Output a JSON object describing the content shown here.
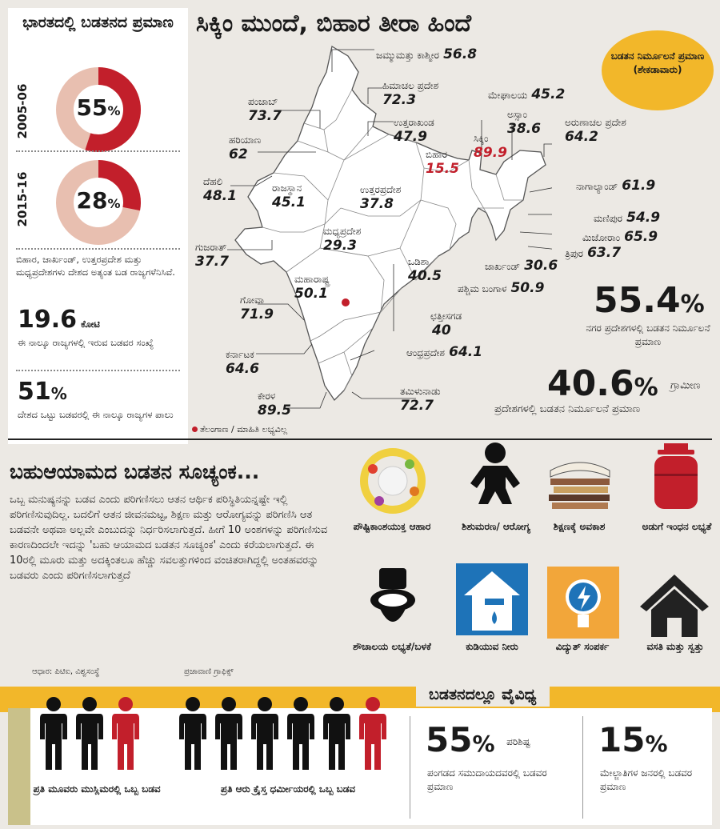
{
  "left": {
    "title": "ಭಾರತದಲ್ಲಿ ಬಡತನದ ಪ್ರಮಾಣ",
    "donuts": [
      {
        "year": "2005-06",
        "percent": 55,
        "value_label": "55"
      },
      {
        "year": "2015-16",
        "percent": 28,
        "value_label": "28"
      }
    ],
    "pct_sign": "%",
    "states_note": "ಬಿಹಾರ, ಜಾರ್ಖಂಡ್, ಉತ್ತರಪ್ರದೇಶ ಮತ್ತು ಮಧ್ಯಪ್ರದೇಶಗಳು ದೇಶದ ಅತ್ಯಂತ ಬಡ ರಾಜ್ಯಗಳೆನಿಸಿವೆ.",
    "crore_num": "19.6",
    "crore_unit": "ಕೋಟಿ",
    "crore_desc": "ಈ ನಾಲ್ಕೂ ರಾಜ್ಯಗಳಲ್ಲಿ ಇರುವ ಬಡವರ ಸಂಖ್ಯೆ",
    "share_num": "51",
    "share_desc": "ದೇಶದ ಒಟ್ಟು ಬಡವರಲ್ಲಿ ಈ ನಾಲ್ಕೂ ರಾಜ್ಯಗಳ ಪಾಲು"
  },
  "map": {
    "title": "ಸಿಕ್ಕಿಂ ಮುಂದೆ, ಬಿಹಾರ ತೀರಾ ಹಿಂದೆ",
    "legend": "ಬಡತನ ನಿರ್ಮೂಲನೆ ಪ್ರಮಾಣ (ಶೇಕಡಾವಾರು)",
    "states": [
      {
        "name": "ಜಮ್ಮುಮತ್ತು ಕಾಶ್ಮೀರ",
        "value": "56.8"
      },
      {
        "name": "ಹಿಮಾಚಲ ಪ್ರದೇಶ",
        "value": "72.3"
      },
      {
        "name": "ಪಂಜಾಬ್",
        "value": "73.7"
      },
      {
        "name": "ಉತ್ತರಾಖಂಡ",
        "value": "47.9"
      },
      {
        "name": "ಹರಿಯಾಣ",
        "value": "62"
      },
      {
        "name": "ಬಿಹಾರ",
        "value": "15.5"
      },
      {
        "name": "ಸಿಕ್ಕಿಂ",
        "value": "89.9"
      },
      {
        "name": "ದೆಹಲಿ",
        "value": "48.1"
      },
      {
        "name": "ರಾಜಸ್ಥಾನ",
        "value": "45.1"
      },
      {
        "name": "ಉತ್ತರಪ್ರದೇಶ",
        "value": "37.8"
      },
      {
        "name": "ಗುಜರಾತ್",
        "value": "37.7"
      },
      {
        "name": "ಮಧ್ಯಪ್ರದೇಶ",
        "value": "29.3"
      },
      {
        "name": "ಒಡಿಶಾ",
        "value": "40.5"
      },
      {
        "name": "ಮಹಾರಾಷ್ಟ್ರ",
        "value": "50.1"
      },
      {
        "name": "ಗೋವಾ",
        "value": "71.9"
      },
      {
        "name": "ಛತ್ತೀಸಗಡ",
        "value": "40"
      },
      {
        "name": "ಕರ್ನಾಟಕ",
        "value": "64.6"
      },
      {
        "name": "ಆಂಧ್ರಪ್ರದೇಶ",
        "value": "64.1"
      },
      {
        "name": "ಕೇರಳ",
        "value": "89.5"
      },
      {
        "name": "ತಮಿಳುನಾಡು",
        "value": "72.7"
      },
      {
        "name": "ಮೇಘಾಲಯ",
        "value": "45.2"
      },
      {
        "name": "ಅಸ್ಸಾಂ",
        "value": "38.6"
      },
      {
        "name": "ಅರುಣಾಚಲ ಪ್ರದೇಶ",
        "value": "64.2"
      },
      {
        "name": "ನಾಗಾಲ್ಯಾಂಡ್",
        "value": "61.9"
      },
      {
        "name": "ಮಣಿಪುರ",
        "value": "54.9"
      },
      {
        "name": "ಮಿಜೋರಾಂ",
        "value": "65.9"
      },
      {
        "name": "ತ್ರಿಪುರ",
        "value": "63.7"
      },
      {
        "name": "ಜಾರ್ಖಂಡ್",
        "value": "30.6"
      },
      {
        "name": "ಪಶ್ಚಿಮ ಬಂಗಾಳ",
        "value": "50.9"
      }
    ],
    "telangana_note": "ತೆಲಂಗಾಣ / ಮಾಹಿತಿ ಲಭ್ಯವಿಲ್ಲ",
    "urban_num": "55.4",
    "urban_desc": "ನಗರ ಪ್ರದೇಶಗಳಲ್ಲಿ ಬಡತನ ನಿರ್ಮೂಲನೆ ಪ್ರಮಾಣ",
    "rural_num": "40.6",
    "rural_word": "ಗ್ರಾಮೀಣ",
    "rural_desc": "ಪ್ರದೇಶಗಳಲ್ಲಿ ಬಡತನ ನಿರ್ಮೂಲನೆ ಪ್ರಮಾಣ"
  },
  "mpi": {
    "title": "ಬಹುಆಯಾಮದ ಬಡತನ ಸೂಚ್ಯಂಕ...",
    "body": "ಒಬ್ಬ ಮನುಷ್ಯನನ್ನು ಬಡವ ಎಂದು ಪರಿಗಣಿಸಲು ಆತನ ಆರ್ಥಿಕ ಪರಿಸ್ಥಿತಿಯನ್ನಷ್ಟೇ ಇಲ್ಲಿ ಪರಿಗಣಿಸುವುದಿಲ್ಲ. ಬದಲಿಗೆ ಆತನ ಜೀವನಮಟ್ಟ, ಶಿಕ್ಷಣ ಮತ್ತು ಆರೋಗ್ಯವನ್ನು ಪರಿಗಣಿಸಿ ಆತ ಬಡವನೇ ಅಥವಾ ಅಲ್ಲವೇ ಎಂಬುದನ್ನು ನಿರ್ಧರಿಸಲಾಗುತ್ತದೆ. ಹೀಗೆ 10 ಅಂಶಗಳನ್ನು ಪರಿಗಣಿಸುವ ಕಾರಣದಿಂದಲೇ ಇದನ್ನು 'ಬಹು ಆಯಾಮದ ಬಡತನ ಸೂಚ್ಯಂಕ' ಎಂದು ಕರೆಯಲಾಗುತ್ತದೆ. ಈ 10ರಲ್ಲಿ ಮೂರು ಮತ್ತು ಅದಕ್ಕಿಂತಲೂ ಹೆಚ್ಚು ಸವಲತ್ತುಗಳಿಂದ ವಂಚಿತರಾಗಿದ್ದಲ್ಲಿ ಅಂತಹವರನ್ನು ಬಡವರು ಎಂದು ಪರಿಗಣಿಸಲಾಗುತ್ತದೆ",
    "indicators": [
      {
        "label": "ಪೌಷ್ಟಿಕಾಂಶಯುಕ್ತ ಆಹಾರ",
        "icon": "food-plate-icon"
      },
      {
        "label": "ಶಿಶುಮರಣ/ ಆರೋಗ್ಯ",
        "icon": "baby-icon"
      },
      {
        "label": "ಶಿಕ್ಷಣಕ್ಕೆ ಅವಕಾಶ",
        "icon": "books-icon"
      },
      {
        "label": "ಅಡುಗೆ ಇಂಧನ ಲಭ್ಯತೆ",
        "icon": "gas-cylinder-icon"
      },
      {
        "label": "ಶೌಚಾಲಯ ಲಭ್ಯತೆ/ಬಳಕೆ",
        "icon": "toilet-icon"
      },
      {
        "label": "ಕುಡಿಯುವ ನೀರು",
        "icon": "water-tap-icon"
      },
      {
        "label": "ವಿದ್ಯುತ್ ಸಂಪರ್ಕ",
        "icon": "bulb-icon"
      },
      {
        "label": "ವಸತಿ ಮತ್ತು ಸ್ವತ್ತು",
        "icon": "house-icon"
      }
    ],
    "source": "ಆಧಾರ: ಪಿಟಿಐ, ವಿಶ್ವಸಂಸ್ಥೆ",
    "credit": "ಪ್ರಜಾವಾಣಿ ಗ್ರಾಫಿಕ್ಸ್"
  },
  "bottom": {
    "title": "ಬಡತನದಲ್ಲೂ ವೈವಿಧ್ಯ",
    "muslim_label": "ಪ್ರತಿ ಮೂವರು ಮುಸ್ಲಿಮರಲ್ಲಿ ಒಬ್ಬ ಬಡವ",
    "christian_label": "ಪ್ರತಿ ಆರು ಕ್ರೈಸ್ತ ಧರ್ಮೀಯರಲ್ಲಿ ಒಬ್ಬ ಬಡವ",
    "sc_num": "55",
    "sc_word": "ಪರಿಶಿಷ್ಟ",
    "sc_desc": "ಪಂಗಡದ ಸಮುದಾಯದವರಲ್ಲಿ ಬಡವರ ಪ್ರಮಾಣ",
    "upper_num": "15",
    "upper_desc": "ಮೇಲ್ಜಾತಿಗಳ ಜನರಲ್ಲಿ ಬಡವರ ಪ್ರಮಾಣ"
  },
  "colors": {
    "red": "#c21f2b",
    "pink": "#e8bfb0",
    "yellow": "#f2b72a",
    "blue": "#1e73b8"
  }
}
